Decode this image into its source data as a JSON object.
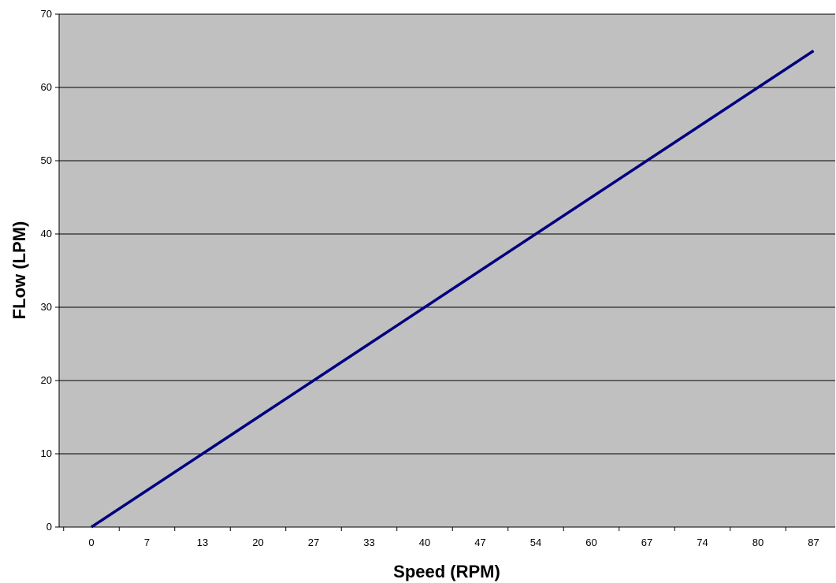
{
  "chart_data": {
    "type": "line",
    "title": "",
    "xlabel": "Speed (RPM)",
    "ylabel": "FLow (LPM)",
    "categories": [
      "0",
      "7",
      "13",
      "20",
      "27",
      "33",
      "40",
      "47",
      "54",
      "60",
      "67",
      "74",
      "80",
      "87"
    ],
    "series": [
      {
        "name": "",
        "color": "#000080",
        "values": [
          0,
          5,
          10,
          15,
          20,
          25,
          30,
          35,
          40,
          45,
          50,
          55,
          60,
          65
        ]
      }
    ],
    "ylim": [
      0,
      70
    ],
    "yticks": [
      0,
      10,
      20,
      30,
      40,
      50,
      60,
      70
    ],
    "grid": "horizontal",
    "legend": "none",
    "colors": {
      "plot_background": "#c0c0c0",
      "gridline": "#000000",
      "line": "#000080"
    }
  }
}
